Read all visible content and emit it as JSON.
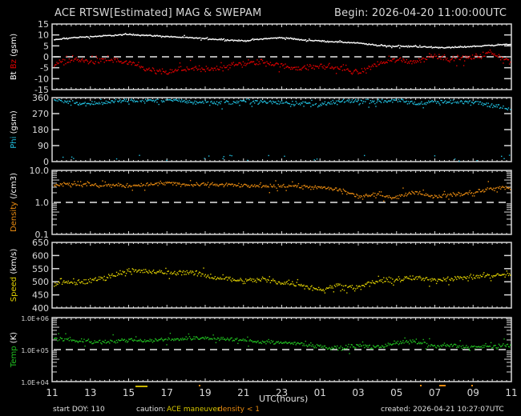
{
  "header": {
    "title": "ACE RTSW[Estimated] MAG & SWEPAM",
    "begin": "Begin: 2026-04-20 11:00:00UTC"
  },
  "footer": {
    "start_doy": "start DOY: 110",
    "caution_label": "caution:",
    "caution_maneuver": "ACE maneuver",
    "caution_density": "density < 1",
    "created": "created: 2026-04-21 10:27:07UTC",
    "xlabel": "UTC(hours)"
  },
  "colors": {
    "background": "#000000",
    "axis": "#d8d8d8",
    "bt": "#ffffff",
    "bz": "#e00000",
    "phi": "#20c0e0",
    "density": "#e88a10",
    "speed": "#e0d000",
    "temp": "#20c020",
    "maneuver": "#c8b400",
    "density_warn": "#e88a10"
  },
  "chart_data": [
    {
      "type": "scatter",
      "panel": "mag",
      "title": "ACE RTSW[Estimated] MAG & SWEPAM",
      "ylabel_parts": [
        {
          "text": "Bt",
          "color": "#ffffff"
        },
        {
          "text": "Bz",
          "color": "#e00000"
        },
        {
          "text": "(gsm)",
          "color": "#ffffff"
        }
      ],
      "ylim": [
        -15,
        15
      ],
      "yticks": [
        "15",
        "10",
        "5",
        "0",
        "-5",
        "-10",
        "-15"
      ],
      "yticks_values": [
        15,
        10,
        5,
        0,
        -5,
        -10,
        -15
      ],
      "dashed_line": 0,
      "x_hours": [
        0,
        1,
        2,
        3,
        4,
        5,
        6,
        7,
        8,
        9,
        10,
        11,
        12,
        13,
        14,
        15,
        16,
        17,
        18,
        19,
        20,
        21,
        22,
        23,
        24
      ],
      "series": [
        {
          "name": "Bt",
          "color": "#ffffff",
          "values": [
            8,
            9,
            9.5,
            10,
            10.5,
            10,
            9.5,
            9,
            8.5,
            8,
            7.5,
            8.5,
            9,
            8,
            7.5,
            7,
            6.5,
            5.5,
            5,
            5,
            4.5,
            4.5,
            5,
            5.5,
            6
          ]
        },
        {
          "name": "Bz",
          "color": "#e00000",
          "values": [
            -3,
            -1,
            -2,
            -1,
            -3,
            -6,
            -7,
            -5,
            -6,
            -4,
            -3,
            -2,
            -4,
            -5,
            -4,
            -5,
            -7,
            -3,
            -1,
            -2,
            1,
            -1,
            0,
            2,
            -2
          ]
        }
      ]
    },
    {
      "type": "scatter",
      "panel": "phi",
      "ylabel_parts": [
        {
          "text": "Phi",
          "color": "#20c0e0"
        },
        {
          "text": "(gsm)",
          "color": "#ffffff"
        }
      ],
      "ylim": [
        0,
        360
      ],
      "yticks": [
        "360",
        "270",
        "180",
        "90",
        "0"
      ],
      "yticks_values": [
        360,
        270,
        180,
        90,
        0
      ],
      "x_hours": [
        0,
        1,
        2,
        3,
        4,
        5,
        6,
        7,
        8,
        9,
        10,
        11,
        12,
        13,
        14,
        15,
        16,
        17,
        18,
        19,
        20,
        21,
        22,
        23,
        24
      ],
      "series": [
        {
          "name": "Phi",
          "color": "#20c0e0",
          "values": [
            350,
            335,
            330,
            340,
            345,
            345,
            350,
            340,
            335,
            330,
            345,
            340,
            335,
            330,
            320,
            340,
            345,
            340,
            350,
            330,
            340,
            335,
            345,
            320,
            300
          ]
        }
      ]
    },
    {
      "type": "scatter",
      "panel": "density",
      "ylabel_parts": [
        {
          "text": "Density",
          "color": "#e88a10"
        },
        {
          "text": "(/cm3)",
          "color": "#ffffff"
        }
      ],
      "yscale": "log",
      "ylim": [
        0.1,
        10.0
      ],
      "yticks": [
        "10.0",
        "1.0",
        "0.1"
      ],
      "yticks_values": [
        10,
        1,
        0.1
      ],
      "dashed_line": 1,
      "x_hours": [
        0,
        1,
        2,
        3,
        4,
        5,
        6,
        7,
        8,
        9,
        10,
        11,
        12,
        13,
        14,
        15,
        16,
        17,
        18,
        19,
        20,
        21,
        22,
        23,
        24
      ],
      "series": [
        {
          "name": "Density",
          "color": "#e88a10",
          "values": [
            3.8,
            4.0,
            3.5,
            3.6,
            3.4,
            3.8,
            4.2,
            3.6,
            3.8,
            3.7,
            3.5,
            3.2,
            3.4,
            3.3,
            3.0,
            2.6,
            1.6,
            1.8,
            1.5,
            2.2,
            1.6,
            1.8,
            2.0,
            2.8,
            3.0
          ]
        }
      ]
    },
    {
      "type": "scatter",
      "panel": "speed",
      "ylabel_parts": [
        {
          "text": "Speed",
          "color": "#e0d000"
        },
        {
          "text": "(km/s)",
          "color": "#ffffff"
        }
      ],
      "ylim": [
        400,
        650
      ],
      "yticks": [
        "650",
        "600",
        "550",
        "500",
        "450",
        "400"
      ],
      "yticks_values": [
        650,
        600,
        550,
        500,
        450,
        400
      ],
      "x_hours": [
        0,
        1,
        2,
        3,
        4,
        5,
        6,
        7,
        8,
        9,
        10,
        11,
        12,
        13,
        14,
        15,
        16,
        17,
        18,
        19,
        20,
        21,
        22,
        23,
        24
      ],
      "series": [
        {
          "name": "Speed",
          "color": "#e0d000",
          "values": [
            495,
            500,
            505,
            525,
            545,
            540,
            535,
            540,
            525,
            515,
            505,
            510,
            500,
            490,
            470,
            490,
            480,
            505,
            510,
            515,
            510,
            515,
            520,
            525,
            530
          ]
        }
      ]
    },
    {
      "type": "scatter",
      "panel": "temp",
      "ylabel_parts": [
        {
          "text": "Temp",
          "color": "#20c020"
        },
        {
          "text": "(K)",
          "color": "#ffffff"
        }
      ],
      "yscale": "log",
      "ylim": [
        10000,
        1000000
      ],
      "yticks": [
        "1.0E+06",
        "1.0E+05",
        "1.0E+04"
      ],
      "yticks_values": [
        1000000,
        100000,
        10000
      ],
      "dashed_line": 100000,
      "x_hours": [
        0,
        1,
        2,
        3,
        4,
        5,
        6,
        7,
        8,
        9,
        10,
        11,
        12,
        13,
        14,
        15,
        16,
        17,
        18,
        19,
        20,
        21,
        22,
        23,
        24
      ],
      "series": [
        {
          "name": "Temp",
          "color": "#20c020",
          "values": [
            240000,
            200000,
            180000,
            190000,
            210000,
            200000,
            220000,
            230000,
            240000,
            220000,
            200000,
            180000,
            170000,
            160000,
            130000,
            110000,
            140000,
            120000,
            170000,
            180000,
            130000,
            140000,
            120000,
            130000,
            140000
          ]
        }
      ]
    }
  ],
  "xaxis": {
    "ticks": [
      "11",
      "13",
      "15",
      "17",
      "19",
      "21",
      "23",
      "01",
      "03",
      "05",
      "07",
      "09",
      "11"
    ],
    "label": "UTC(hours)"
  }
}
